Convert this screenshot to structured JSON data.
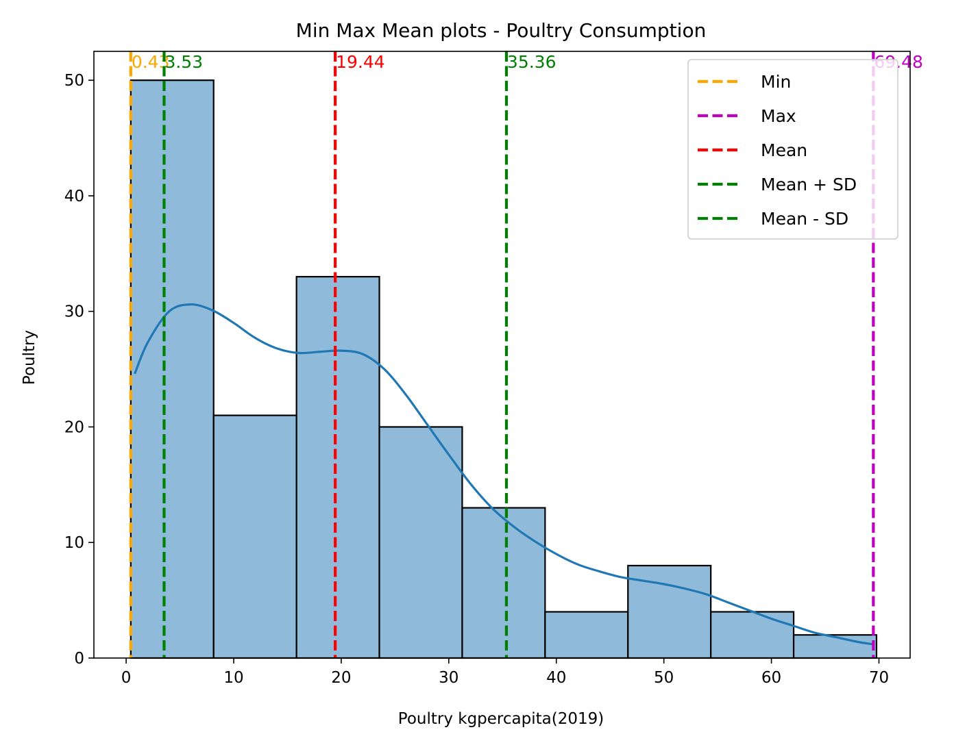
{
  "chart_data": {
    "type": "bar",
    "title": "Min Max Mean plots - Poultry Consumption",
    "xlabel": "Poultry kgpercapita(2019)",
    "ylabel": "Poultry",
    "xlim": [
      -3.0,
      72.9
    ],
    "ylim": [
      0,
      52.5
    ],
    "xticks": [
      0,
      10,
      20,
      30,
      40,
      50,
      60,
      70
    ],
    "yticks": [
      0,
      10,
      20,
      30,
      40,
      50
    ],
    "bin_edges": [
      0.43,
      8.135,
      15.84,
      23.545,
      31.25,
      38.955,
      46.66,
      54.365,
      62.07,
      69.775
    ],
    "counts": [
      50,
      21,
      33,
      20,
      13,
      4,
      8,
      4,
      2
    ],
    "bar_color": "#8fbad9",
    "kde": {
      "color": "#1f77b4",
      "x": [
        0.8,
        2,
        4,
        6,
        8,
        10,
        12,
        14,
        16,
        18,
        20,
        22,
        24,
        26,
        28,
        30,
        32,
        34,
        36,
        38,
        40,
        42,
        44,
        46,
        48,
        50,
        52,
        54,
        56,
        58,
        60,
        62,
        64,
        66,
        68,
        69.4
      ],
      "y": [
        24.6,
        27.3,
        30.0,
        30.6,
        30.1,
        29.0,
        27.7,
        26.8,
        26.4,
        26.5,
        26.6,
        26.3,
        25.0,
        22.8,
        20.2,
        17.6,
        15.1,
        13.0,
        11.4,
        10.1,
        9.0,
        8.1,
        7.5,
        7.0,
        6.7,
        6.4,
        6.0,
        5.5,
        4.8,
        4.1,
        3.4,
        2.8,
        2.2,
        1.8,
        1.4,
        1.2
      ]
    },
    "vlines": [
      {
        "legend": "Min",
        "value": 0.43,
        "label": "0.43",
        "color": "#ffa500"
      },
      {
        "legend": "Max",
        "value": 69.48,
        "label": "69.48",
        "color": "#bf00bf"
      },
      {
        "legend": "Mean",
        "value": 19.44,
        "label": "19.44",
        "color": "#ff0000"
      },
      {
        "legend": "Mean + SD",
        "value": 35.36,
        "label": "35.36",
        "color": "#008000"
      },
      {
        "legend": "Mean - SD",
        "value": 3.53,
        "label": "3.53",
        "color": "#008000"
      }
    ],
    "legend_position": "top-right",
    "grid": false
  }
}
